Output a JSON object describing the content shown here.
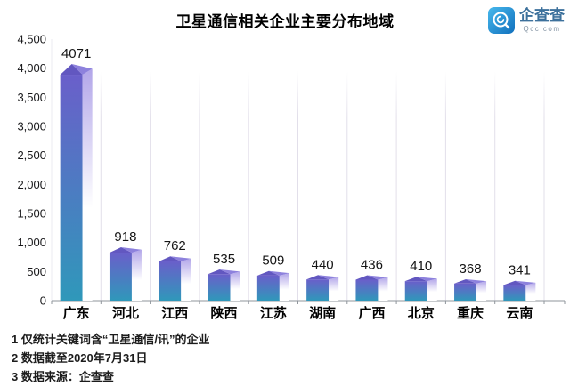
{
  "header": {
    "title": "卫星通信相关企业主要分布地域"
  },
  "logo": {
    "name": "企查查",
    "domain": "Qcc.com",
    "brand_color": "#1e87cf"
  },
  "chart_data": {
    "type": "bar",
    "title": "卫星通信相关企业主要分布地域",
    "categories": [
      "广东",
      "河北",
      "江西",
      "陕西",
      "江苏",
      "湖南",
      "广西",
      "北京",
      "重庆",
      "云南"
    ],
    "values": [
      4071,
      918,
      762,
      535,
      509,
      440,
      436,
      410,
      368,
      341
    ],
    "xlabel": "",
    "ylabel": "",
    "ylim": [
      0,
      4500
    ],
    "ytick_step": 500,
    "grid": "vertical-category-separators",
    "legend": "none",
    "bar_style": "3d-prism-gradient",
    "colors": {
      "bar_top": "#6a5fca",
      "bar_bottom": "#2f98ba",
      "bar_side_top": "#b2a6e9",
      "bar_side_bottom": "#ffffff",
      "roof_left": "#6257c0",
      "roof_right": "#8d81dd",
      "axis": "#8f959b",
      "separator": "#e2dfea",
      "text": "#141414"
    }
  },
  "footnotes": [
    "1 仅统计关键词含“卫星通信/讯”的企业",
    "2 数据截至2020年7月31日",
    "3 数据来源：企查查"
  ]
}
